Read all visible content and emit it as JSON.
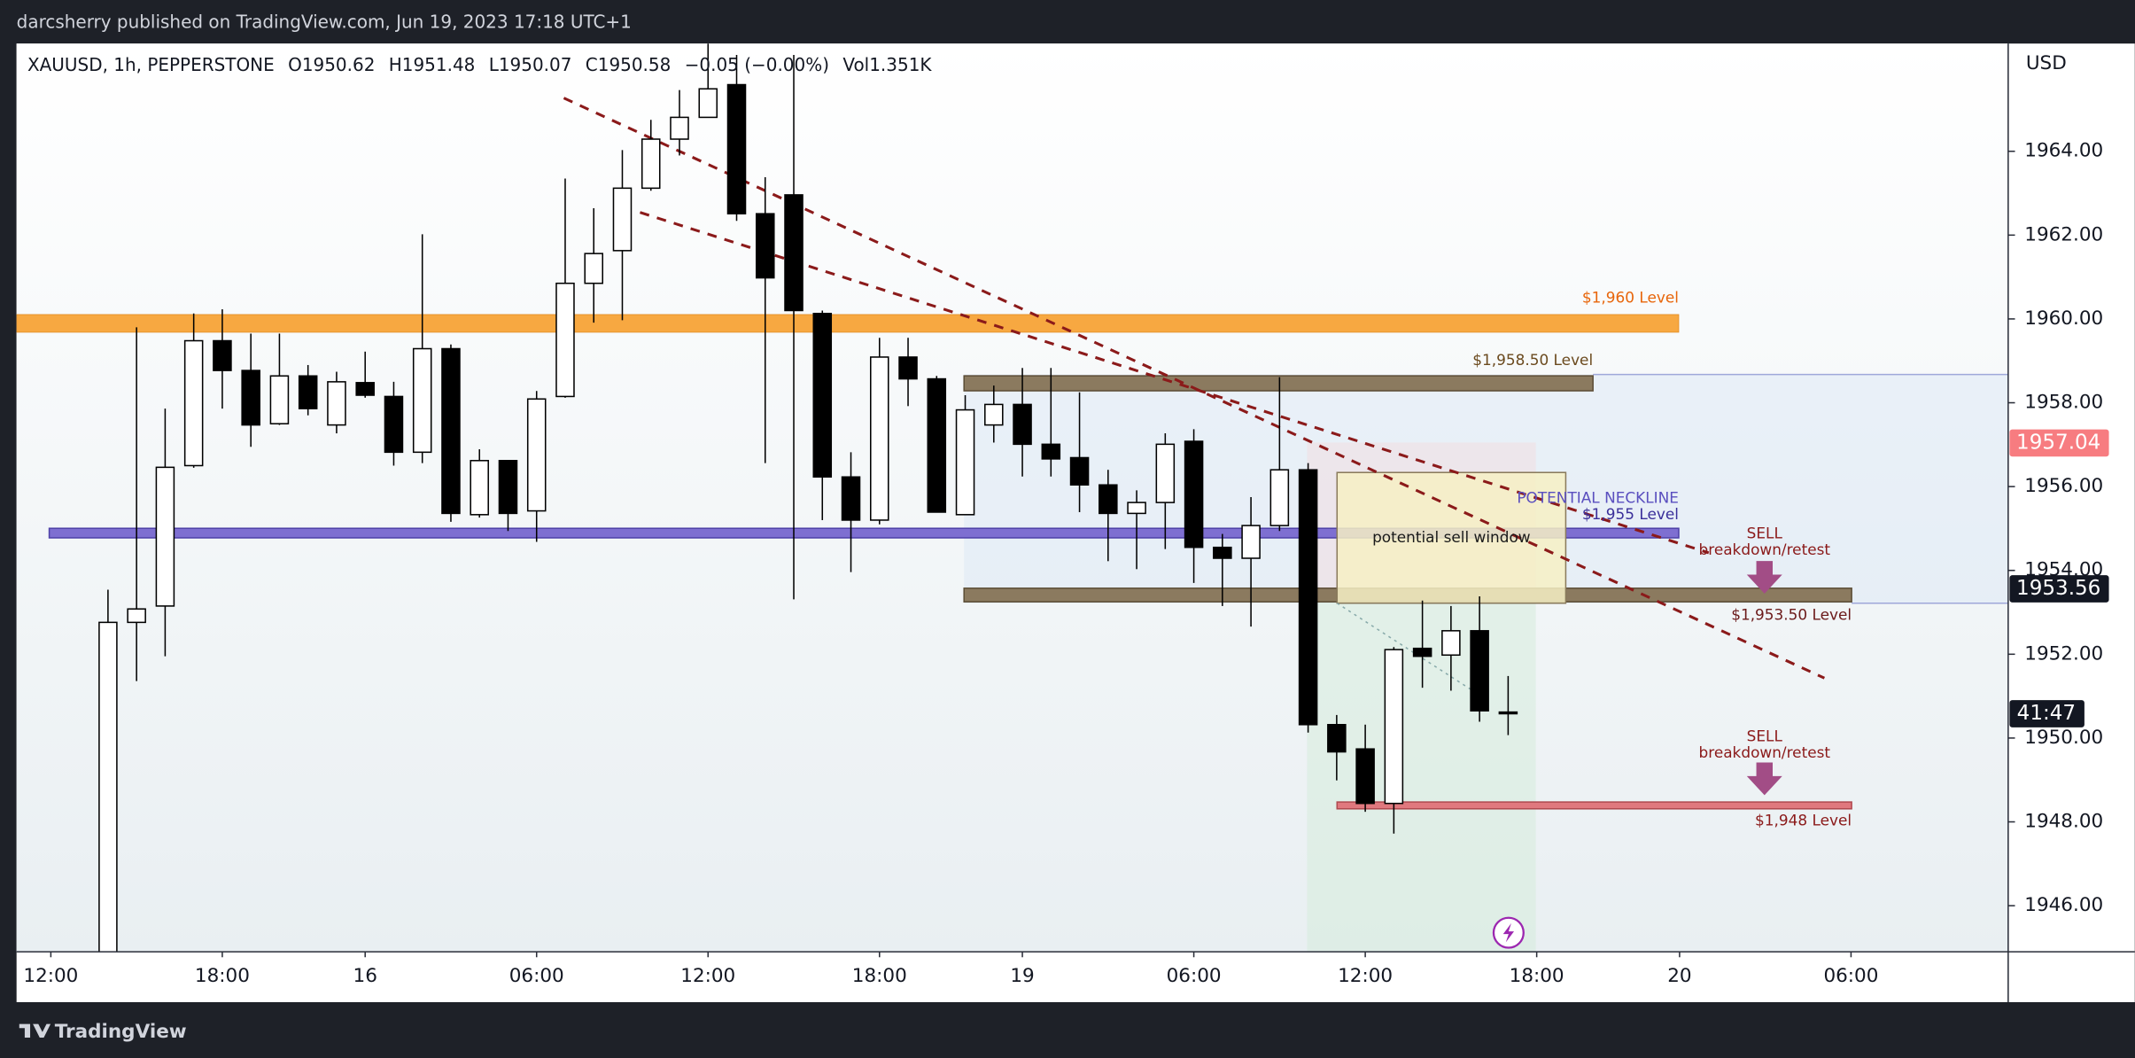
{
  "header": "darcsherry published on TradingView.com, Jun 19, 2023 17:18 UTC+1",
  "footer": "TradingView",
  "chart_data": {
    "type": "candlestick",
    "symbol": "XAUUSD, 1h, PEPPERSTONE",
    "legend_values": [
      "O1950.62",
      "H1951.48",
      "L1950.07",
      "C1950.58",
      "−0.05 (−0.00%)",
      "Vol1.351K"
    ],
    "currency": "USD",
    "x": [
      2,
      3,
      4,
      5,
      6,
      7,
      8,
      9,
      10,
      11,
      12,
      13,
      14,
      15,
      16,
      17,
      18,
      19,
      20,
      21,
      22,
      23,
      24,
      25,
      26,
      27,
      28,
      29,
      30,
      31,
      32,
      33,
      34,
      35,
      36,
      37,
      38,
      39,
      40,
      41,
      42,
      43,
      44,
      45,
      46,
      47,
      48,
      49,
      50,
      51
    ],
    "open": [
      1944.6,
      1952.76,
      1953.15,
      1956.5,
      1959.48,
      1958.77,
      1957.5,
      1958.64,
      1957.47,
      1958.48,
      1958.15,
      1956.82,
      1959.29,
      1955.33,
      1956.62,
      1955.42,
      1958.15,
      1960.85,
      1961.63,
      1963.12,
      1964.29,
      1964.81,
      1965.59,
      1962.51,
      1962.96,
      1960.13,
      1956.23,
      1955.2,
      1959.09,
      1958.57,
      1955.33,
      1957.47,
      1957.96,
      1957.01,
      1956.69,
      1956.04,
      1955.36,
      1955.62,
      1957.08,
      1954.55,
      1954.29,
      1955.07,
      1956.4,
      1950.32,
      1949.74,
      1948.44,
      1952.14,
      1951.98,
      1952.56,
      1950.62
    ],
    "high": [
      1953.54,
      1959.8,
      1957.86,
      1960.13,
      1960.23,
      1959.65,
      1959.65,
      1958.9,
      1958.74,
      1959.22,
      1958.5,
      1962.02,
      1959.39,
      1956.89,
      1956.62,
      1958.28,
      1963.35,
      1962.64,
      1964.03,
      1964.75,
      1965.46,
      1966.57,
      1966.3,
      1963.38,
      1966.3,
      1960.2,
      1956.82,
      1959.55,
      1959.55,
      1958.64,
      1958.18,
      1958.41,
      1958.83,
      1958.83,
      1958.25,
      1956.4,
      1955.91,
      1957.27,
      1957.37,
      1954.87,
      1955.75,
      1958.61,
      1956.56,
      1950.55,
      1950.32,
      1952.17,
      1953.28,
      1953.15,
      1953.38,
      1951.48
    ],
    "low": [
      1944.5,
      1951.36,
      1951.95,
      1956.45,
      1957.86,
      1956.95,
      1957.47,
      1957.7,
      1957.27,
      1958.12,
      1956.5,
      1956.56,
      1955.16,
      1955.26,
      1954.94,
      1954.68,
      1958.12,
      1959.91,
      1959.97,
      1963.06,
      1963.9,
      1964.81,
      1962.34,
      1956.56,
      1953.31,
      1955.2,
      1953.96,
      1955.1,
      1957.92,
      1955.39,
      1955.33,
      1957.05,
      1956.24,
      1956.24,
      1955.39,
      1954.22,
      1954.03,
      1954.51,
      1953.7,
      1953.15,
      1952.66,
      1954.94,
      1950.13,
      1948.99,
      1948.24,
      1947.72,
      1951.2,
      1951.13,
      1950.39,
      1950.07
    ],
    "close": [
      1952.76,
      1953.08,
      1956.46,
      1959.48,
      1958.77,
      1957.47,
      1958.64,
      1957.86,
      1958.5,
      1958.18,
      1956.82,
      1959.29,
      1955.36,
      1956.62,
      1955.36,
      1958.09,
      1960.85,
      1961.56,
      1963.12,
      1964.29,
      1964.81,
      1965.49,
      1962.51,
      1960.98,
      1960.2,
      1956.23,
      1955.2,
      1959.09,
      1958.57,
      1955.39,
      1957.83,
      1957.96,
      1957.01,
      1956.66,
      1956.04,
      1955.36,
      1955.62,
      1957.01,
      1954.55,
      1954.29,
      1955.07,
      1956.4,
      1950.32,
      1949.67,
      1948.44,
      1952.11,
      1951.95,
      1952.56,
      1950.65,
      1950.58
    ],
    "up_color": "#ffffff",
    "down_color": "#000000",
    "xlim": [
      -1.2,
      68.5
    ],
    "xticks": [
      {
        "value": 0,
        "label": "12:00"
      },
      {
        "value": 6,
        "label": "18:00"
      },
      {
        "value": 11,
        "label": "16"
      },
      {
        "value": 17,
        "label": "06:00"
      },
      {
        "value": 23,
        "label": "12:00"
      },
      {
        "value": 29,
        "label": "18:00"
      },
      {
        "value": 34,
        "label": "19"
      },
      {
        "value": 40,
        "label": "06:00"
      },
      {
        "value": 46,
        "label": "12:00"
      },
      {
        "value": 52,
        "label": "18:00"
      },
      {
        "value": 57,
        "label": "20"
      },
      {
        "value": 63,
        "label": "06:00"
      }
    ],
    "ylim": [
      1944.9,
      1966.57
    ],
    "yticks": [
      {
        "value": 1946,
        "label": "1946.00"
      },
      {
        "value": 1948,
        "label": "1948.00"
      },
      {
        "value": 1950,
        "label": "1950.00"
      },
      {
        "value": 1952,
        "label": "1952.00"
      },
      {
        "value": 1954,
        "label": "1954.00"
      },
      {
        "value": 1956,
        "label": "1956.00"
      },
      {
        "value": 1958,
        "label": "1958.00"
      },
      {
        "value": 1960,
        "label": "1960.00"
      },
      {
        "value": 1962,
        "label": "1962.00"
      },
      {
        "value": 1964,
        "label": "1964.00"
      }
    ],
    "price_markers": [
      {
        "value": 1957.04,
        "label": "1957.04",
        "color": "#f77c80"
      },
      {
        "value": 1953.56,
        "label": "1953.56",
        "color": "#131722"
      }
    ],
    "countdown": "41:47",
    "annotations": {
      "level_1960": "$1,960 Level",
      "level_1958": "$1,958.50 Level",
      "neckline": "POTENTIAL NECKLINE",
      "level_1955": "$1,955 Level",
      "level_1953": "$1,953.50 Level",
      "level_1948": "$1,948 Level",
      "sell_window": "potential sell window",
      "sell_1": "SELL",
      "retest_1": "breakdown/retest",
      "sell_2": "SELL",
      "retest_2": "breakdown/retest"
    }
  }
}
